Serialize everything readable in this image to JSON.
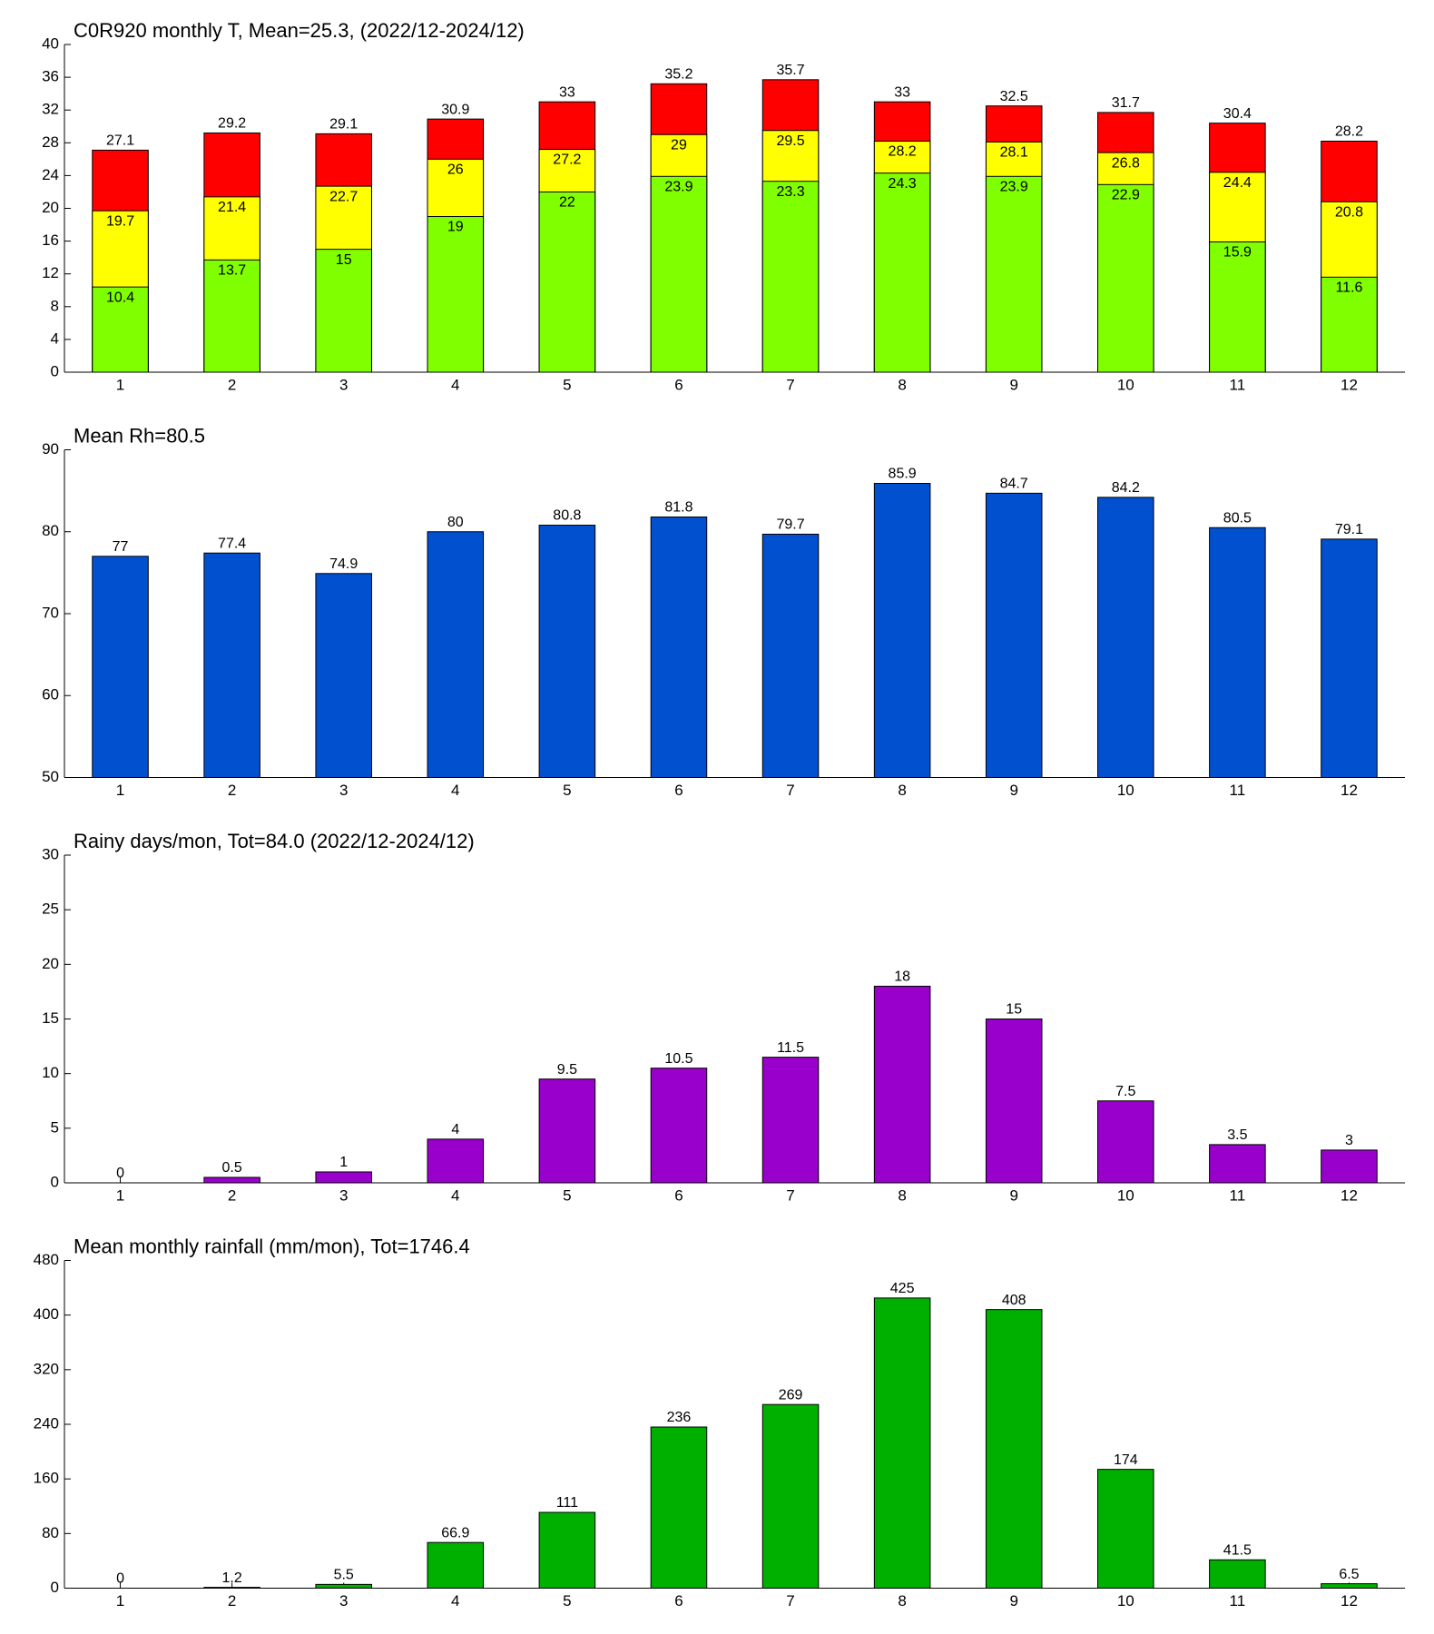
{
  "chart_data": [
    {
      "type": "bar",
      "barmode": "overlay",
      "title": "C0R920 monthly T, Mean=25.3, (2022/12-2024/12)",
      "categories": [
        "1",
        "2",
        "3",
        "4",
        "5",
        "6",
        "7",
        "8",
        "9",
        "10",
        "11",
        "12"
      ],
      "series": [
        {
          "color": "#ff0000",
          "values": [
            27.1,
            29.2,
            29.1,
            30.9,
            33,
            35.2,
            35.7,
            33,
            32.5,
            31.7,
            30.4,
            28.2
          ]
        },
        {
          "color": "#ffff00",
          "values": [
            19.7,
            21.4,
            22.7,
            26,
            27.2,
            29,
            29.5,
            28.2,
            28.1,
            26.8,
            24.4,
            20.8
          ]
        },
        {
          "color": "#80ff00",
          "values": [
            10.4,
            13.7,
            15,
            19,
            22,
            23.9,
            23.3,
            24.3,
            23.9,
            22.9,
            15.9,
            11.6
          ]
        }
      ],
      "ylim": [
        0,
        40
      ],
      "yticks": [
        0,
        4,
        8,
        12,
        16,
        20,
        24,
        28,
        32,
        36,
        40
      ]
    },
    {
      "type": "bar",
      "title": "Mean Rh=80.5",
      "categories": [
        "1",
        "2",
        "3",
        "4",
        "5",
        "6",
        "7",
        "8",
        "9",
        "10",
        "11",
        "12"
      ],
      "series": [
        {
          "color": "#0050d0",
          "values": [
            77,
            77.4,
            74.9,
            80,
            80.8,
            81.8,
            79.7,
            85.9,
            84.7,
            84.2,
            80.5,
            79.1
          ]
        }
      ],
      "ylim": [
        50,
        90
      ],
      "yticks": [
        50,
        60,
        70,
        80,
        90
      ]
    },
    {
      "type": "bar",
      "title": "Rainy days/mon, Tot=84.0 (2022/12-2024/12)",
      "categories": [
        "1",
        "2",
        "3",
        "4",
        "5",
        "6",
        "7",
        "8",
        "9",
        "10",
        "11",
        "12"
      ],
      "series": [
        {
          "color": "#9900cc",
          "values": [
            0,
            0.5,
            1,
            4,
            9.5,
            10.5,
            11.5,
            18,
            15,
            7.5,
            3.5,
            3
          ]
        }
      ],
      "ylim": [
        0,
        30
      ],
      "yticks": [
        0,
        5,
        10,
        15,
        20,
        25,
        30
      ]
    },
    {
      "type": "bar",
      "title": "Mean monthly rainfall (mm/mon), Tot=1746.4",
      "categories": [
        "1",
        "2",
        "3",
        "4",
        "5",
        "6",
        "7",
        "8",
        "9",
        "10",
        "11",
        "12"
      ],
      "series": [
        {
          "color": "#00b000",
          "values": [
            0,
            1.2,
            5.5,
            66.9,
            111,
            236,
            269,
            425,
            408,
            174,
            41.5,
            6.5
          ]
        }
      ],
      "ylim": [
        0,
        480
      ],
      "yticks": [
        0,
        80,
        160,
        240,
        320,
        400,
        480
      ]
    }
  ]
}
